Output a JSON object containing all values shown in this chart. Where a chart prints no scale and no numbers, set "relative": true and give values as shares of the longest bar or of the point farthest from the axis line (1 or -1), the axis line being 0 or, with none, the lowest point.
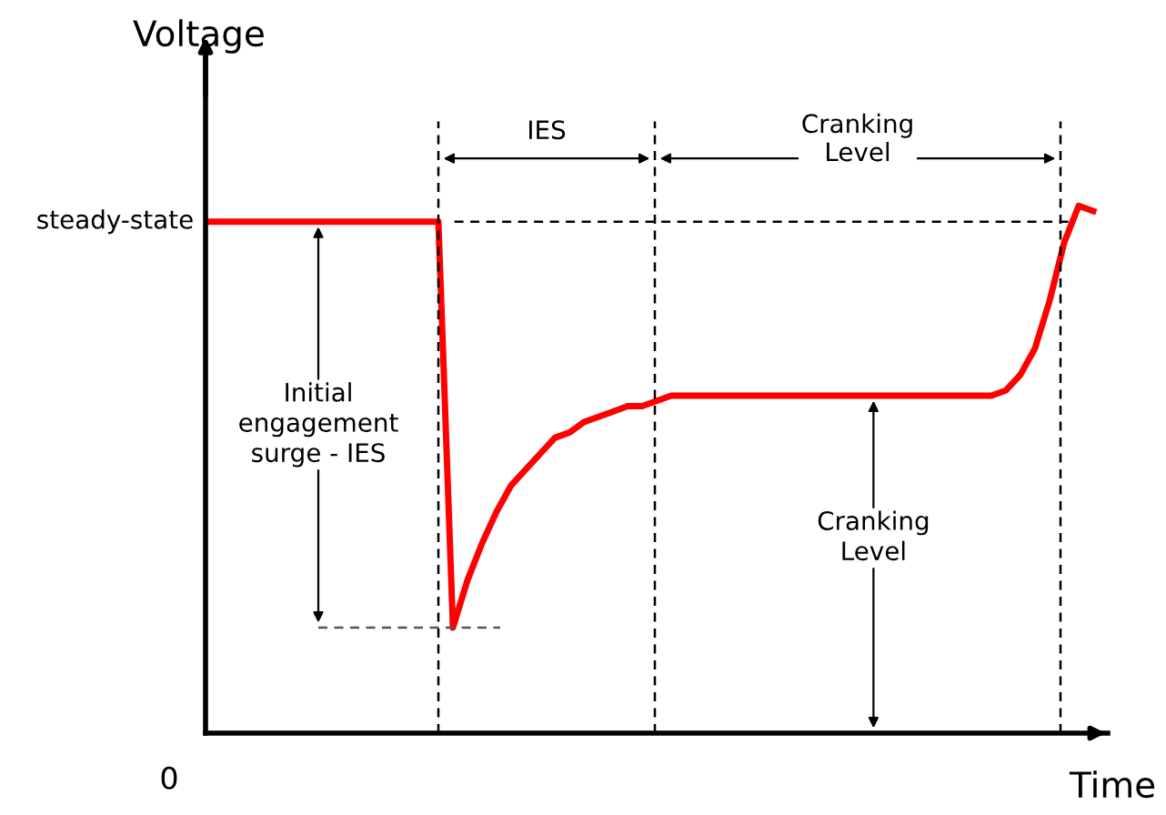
{
  "chart_data": {
    "type": "line",
    "relative": true,
    "xlabel": "Time",
    "ylabel": "Voltage",
    "categories": [
      null,
      null,
      null,
      null,
      null,
      null,
      null,
      null,
      null,
      null,
      null,
      null,
      null,
      null,
      null,
      null,
      null,
      null,
      null,
      null,
      null,
      null,
      null,
      null,
      null,
      null,
      null,
      null,
      null,
      null,
      null,
      null,
      null,
      null,
      null,
      null,
      null,
      null,
      null,
      null,
      null,
      null,
      null,
      null,
      null,
      null,
      null,
      null,
      null,
      null,
      null,
      null,
      null,
      null,
      null,
      null,
      null,
      null,
      null,
      null,
      null,
      null
    ],
    "series": [
      {
        "color": "#ff0000",
        "values": [
          0.97,
          0.97,
          0.97,
          0.97,
          0.97,
          0.97,
          0.97,
          0.97,
          0.97,
          0.97,
          0.97,
          0.97,
          0.97,
          0.97,
          0.97,
          0.97,
          0.97,
          0.2,
          0.29,
          0.36,
          0.42,
          0.47,
          0.5,
          0.53,
          0.56,
          0.57,
          0.59,
          0.6,
          0.61,
          0.62,
          0.62,
          0.63,
          0.64,
          0.64,
          0.64,
          0.64,
          0.64,
          0.64,
          0.64,
          0.64,
          0.64,
          0.64,
          0.64,
          0.64,
          0.64,
          0.64,
          0.64,
          0.64,
          0.64,
          0.64,
          0.64,
          0.64,
          0.64,
          0.64,
          0.64,
          0.65,
          0.68,
          0.73,
          0.82,
          0.93,
          1.0,
          0.99
        ]
      }
    ],
    "ref_lines": [
      {
        "axis": "y",
        "value": 0.97,
        "label": "steady-state",
        "line_style": "dashed",
        "color": "#000000"
      },
      {
        "axis": "y",
        "value": 0.2,
        "line_style": "dashed",
        "color": "#555555"
      }
    ],
    "annotations": [
      "0",
      "IES",
      "Cranking\nLevel",
      "Initial\nengagement\nsurge - IES",
      "Cranking\nLevel"
    ],
    "grid": false,
    "legend": false,
    "marker": "none",
    "line_style": "solid"
  }
}
